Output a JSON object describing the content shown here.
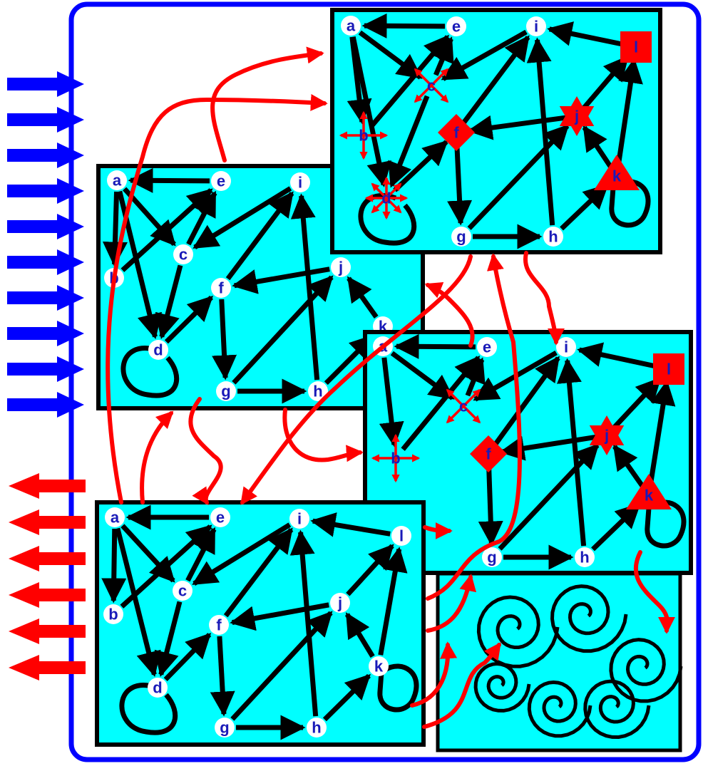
{
  "colors": {
    "panel_fill": "#00FFFF",
    "panel_border": "#000000",
    "outer_border": "#0000FF",
    "inflow_arrows": "#0000FF",
    "outflow_arrows": "#FF0000",
    "edge": "#000000",
    "transfer": "#FF0000",
    "perturbed_node": "#FF0000",
    "node_fill": "#FFFFFF",
    "node_label": "#1A1AB8"
  },
  "panels": [
    {
      "id": "panel-top-left",
      "nodes": [
        {
          "id": "a",
          "label": "a",
          "shape": "circle"
        },
        {
          "id": "b",
          "label": "b",
          "shape": "circle"
        },
        {
          "id": "c",
          "label": "c",
          "shape": "circle"
        },
        {
          "id": "d",
          "label": "d",
          "shape": "circle"
        },
        {
          "id": "e",
          "label": "e",
          "shape": "circle"
        },
        {
          "id": "f",
          "label": "f",
          "shape": "circle"
        },
        {
          "id": "g",
          "label": "g",
          "shape": "circle"
        },
        {
          "id": "h",
          "label": "h",
          "shape": "circle"
        },
        {
          "id": "i",
          "label": "i",
          "shape": "circle"
        },
        {
          "id": "j",
          "label": "j",
          "shape": "circle"
        },
        {
          "id": "k",
          "label": "k",
          "shape": "circle"
        }
      ]
    },
    {
      "id": "panel-top-right",
      "nodes": [
        {
          "id": "a",
          "label": "a",
          "shape": "circle"
        },
        {
          "id": "b",
          "label": "b",
          "shape": "cross"
        },
        {
          "id": "c",
          "label": "c",
          "shape": "xcross"
        },
        {
          "id": "d",
          "label": "d",
          "shape": "star8"
        },
        {
          "id": "e",
          "label": "e",
          "shape": "circle"
        },
        {
          "id": "f",
          "label": "f",
          "shape": "diamond"
        },
        {
          "id": "g",
          "label": "g",
          "shape": "circle"
        },
        {
          "id": "h",
          "label": "h",
          "shape": "circle"
        },
        {
          "id": "i",
          "label": "i",
          "shape": "circle"
        },
        {
          "id": "j",
          "label": "j",
          "shape": "hexagram"
        },
        {
          "id": "k",
          "label": "k",
          "shape": "triangle"
        },
        {
          "id": "l",
          "label": "l",
          "shape": "square"
        }
      ]
    },
    {
      "id": "panel-middle-right",
      "nodes": [
        {
          "id": "a",
          "label": "a",
          "shape": "circle"
        },
        {
          "id": "b",
          "label": "b",
          "shape": "cross"
        },
        {
          "id": "c",
          "label": "c",
          "shape": "xcross"
        },
        {
          "id": "e",
          "label": "e",
          "shape": "circle"
        },
        {
          "id": "f",
          "label": "f",
          "shape": "diamond"
        },
        {
          "id": "g",
          "label": "g",
          "shape": "circle"
        },
        {
          "id": "h",
          "label": "h",
          "shape": "circle"
        },
        {
          "id": "i",
          "label": "i",
          "shape": "circle"
        },
        {
          "id": "j",
          "label": "j",
          "shape": "hexagram"
        },
        {
          "id": "k",
          "label": "k",
          "shape": "triangle"
        },
        {
          "id": "l",
          "label": "l",
          "shape": "square"
        }
      ]
    },
    {
      "id": "panel-bottom-left",
      "nodes": [
        {
          "id": "a",
          "label": "a",
          "shape": "circle"
        },
        {
          "id": "b",
          "label": "b",
          "shape": "circle"
        },
        {
          "id": "c",
          "label": "c",
          "shape": "circle"
        },
        {
          "id": "d",
          "label": "d",
          "shape": "circle"
        },
        {
          "id": "e",
          "label": "e",
          "shape": "circle"
        },
        {
          "id": "f",
          "label": "f",
          "shape": "circle"
        },
        {
          "id": "g",
          "label": "g",
          "shape": "circle"
        },
        {
          "id": "h",
          "label": "h",
          "shape": "circle"
        },
        {
          "id": "i",
          "label": "i",
          "shape": "circle"
        },
        {
          "id": "j",
          "label": "j",
          "shape": "circle"
        },
        {
          "id": "k",
          "label": "k",
          "shape": "circle"
        },
        {
          "id": "l",
          "label": "l",
          "shape": "circle"
        }
      ]
    }
  ],
  "edges": [
    [
      "e",
      "a"
    ],
    [
      "a",
      "b"
    ],
    [
      "a",
      "c"
    ],
    [
      "a",
      "d"
    ],
    [
      "b",
      "e"
    ],
    [
      "c",
      "e"
    ],
    [
      "c",
      "d"
    ],
    [
      "i",
      "c"
    ],
    [
      "d",
      "f"
    ],
    [
      "f",
      "i"
    ],
    [
      "f",
      "g"
    ],
    [
      "j",
      "f"
    ],
    [
      "g",
      "h"
    ],
    [
      "g",
      "j"
    ],
    [
      "h",
      "i"
    ],
    [
      "h",
      "k"
    ],
    [
      "k",
      "j"
    ],
    [
      "k",
      "l"
    ],
    [
      "l",
      "i"
    ],
    [
      "j",
      "l"
    ]
  ],
  "self_loops": [
    "d",
    "k"
  ],
  "inflow_arrow_count": 10,
  "outflow_arrow_count": 6
}
